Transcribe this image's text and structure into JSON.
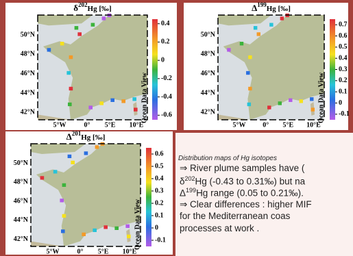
{
  "panels": [
    {
      "title": {
        "symbol": "δ",
        "mass": "202",
        "unit": "Hg [‰]"
      },
      "lat_labels": [
        "50°N",
        "48°N",
        "46°N",
        "44°N",
        "42°N"
      ],
      "lon_labels": [
        "5°W",
        "0°",
        "5°E",
        "10°E"
      ],
      "colorbar": {
        "ticks": [
          0.4,
          0.2,
          0,
          -0.2,
          -0.4,
          -0.6
        ],
        "range": [
          -0.65,
          0.45
        ]
      },
      "watermark": "Ocean Data View"
    },
    {
      "title": {
        "symbol": "Δ",
        "mass": "199",
        "unit": "Hg [‰]"
      },
      "lat_labels": [
        "50°N",
        "48°N",
        "46°N",
        "44°N",
        "42°N"
      ],
      "lon_labels": [
        "5°W",
        "0°",
        "5°E",
        "10°E"
      ],
      "colorbar": {
        "ticks": [
          0.7,
          0.6,
          0.5,
          0.4,
          0.3,
          0.2,
          0.1,
          0,
          -0.1
        ],
        "range": [
          -0.15,
          0.75
        ]
      },
      "watermark": "Ocean Data View"
    },
    {
      "title": {
        "symbol": "Δ",
        "mass": "201",
        "unit": "Hg [‰]"
      },
      "lat_labels": [
        "50°N",
        "48°N",
        "46°N",
        "44°N",
        "42°N"
      ],
      "lon_labels": [
        "5°W",
        "0°",
        "5°E",
        "10°E"
      ],
      "colorbar": {
        "ticks": [
          0.6,
          0.5,
          0.4,
          0.3,
          0.2,
          0.1,
          0,
          -0.1
        ],
        "range": [
          -0.15,
          0.65
        ]
      },
      "watermark": "Ocean Data View"
    }
  ],
  "caption": "Distribution maps of Hg isotopes",
  "notes": [
    [
      {
        "text": "⇒  River plume samples have ("
      }
    ],
    [
      {
        "text": "δ"
      },
      {
        "sup": "202"
      },
      {
        "text": "Hg (-0.43 to 0.31‰) but na"
      }
    ],
    [
      {
        "text": "Δ"
      },
      {
        "sup": "199"
      },
      {
        "text": "Hg range (0.05 to 0.21‰)."
      }
    ],
    [
      {
        "text": "⇒ Clear differences : higher MIF"
      }
    ],
    [
      {
        "text": "for  the  Mediterranean  coas"
      }
    ],
    [
      {
        "text": "processes at work ."
      }
    ]
  ]
}
